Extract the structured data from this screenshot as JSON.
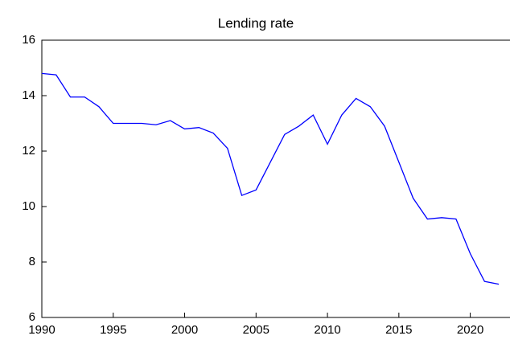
{
  "chart_data": {
    "type": "line",
    "title": "Lending rate",
    "x": [
      1990,
      1991,
      1992,
      1993,
      1994,
      1995,
      1996,
      1997,
      1998,
      1999,
      2000,
      2001,
      2002,
      2003,
      2004,
      2005,
      2006,
      2007,
      2008,
      2009,
      2010,
      2011,
      2012,
      2013,
      2014,
      2015,
      2016,
      2017,
      2018,
      2019,
      2020,
      2021,
      2022
    ],
    "series": [
      {
        "name": "Lending rate",
        "color": "#0000ff",
        "values": [
          14.8,
          14.75,
          13.95,
          13.95,
          13.6,
          13.0,
          13.0,
          13.0,
          12.95,
          13.1,
          12.8,
          12.85,
          12.65,
          12.1,
          10.4,
          10.6,
          11.6,
          12.6,
          12.9,
          13.3,
          12.25,
          13.3,
          13.9,
          13.6,
          12.9,
          11.6,
          10.3,
          9.55,
          9.6,
          9.55,
          8.3,
          7.3,
          7.2
        ]
      }
    ],
    "xlim": [
      1990,
      2022.5
    ],
    "xticks": [
      1990,
      1995,
      2000,
      2005,
      2010,
      2015,
      2020
    ],
    "ylim": [
      6,
      16
    ],
    "yticks": [
      6,
      8,
      10,
      12,
      14,
      16
    ]
  }
}
